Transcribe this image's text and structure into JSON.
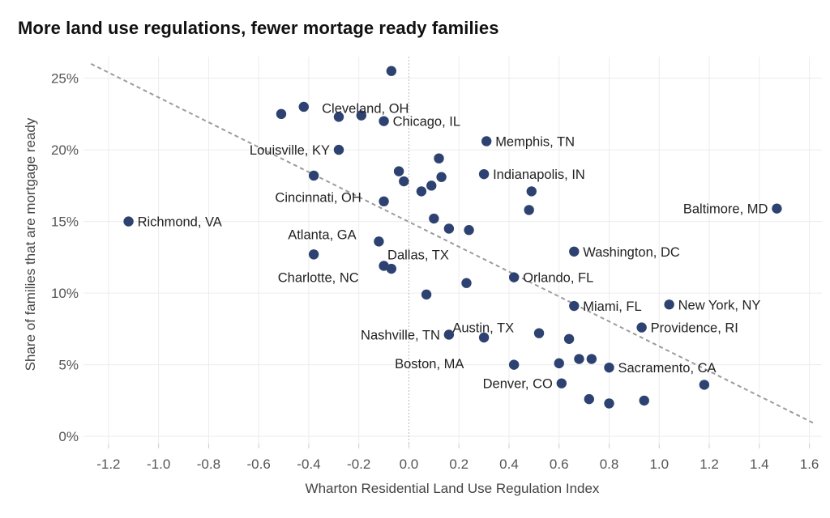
{
  "colors": {
    "point": "#2e4272",
    "grid": "#ececec",
    "trend": "#9b9b9b",
    "zero_line": "#bbbbbb"
  },
  "chart_data": {
    "type": "scatter",
    "title": "More land use regulations, fewer mortage ready families",
    "xlabel": "Wharton Residential Land Use Regulation Index",
    "ylabel": "Share of families that are mortgage ready",
    "xlim": [
      -1.3,
      1.65
    ],
    "ylim": [
      -0.5,
      26.5
    ],
    "x_ticks": [
      -1.2,
      -1.0,
      -0.8,
      -0.6,
      -0.4,
      -0.2,
      0.0,
      0.2,
      0.4,
      0.6,
      0.8,
      1.0,
      1.2,
      1.4,
      1.6
    ],
    "x_tick_labels": [
      "-1.2",
      "-1.0",
      "-0.8",
      "-0.6",
      "-0.4",
      "-0.2",
      "0.0",
      "0.2",
      "0.4",
      "0.6",
      "0.8",
      "1.0",
      "1.2",
      "1.4",
      "1.6"
    ],
    "y_ticks": [
      0,
      5,
      10,
      15,
      20,
      25
    ],
    "y_tick_labels": [
      "0%",
      "5%",
      "10%",
      "15%",
      "20%",
      "25%"
    ],
    "grid": true,
    "trendline": {
      "x": [
        -1.27,
        1.62
      ],
      "y": [
        26.0,
        0.9
      ]
    },
    "points": [
      {
        "x": -0.07,
        "y": 25.5,
        "label": ""
      },
      {
        "x": -0.42,
        "y": 23.0,
        "label": ""
      },
      {
        "x": -0.51,
        "y": 22.5,
        "label": ""
      },
      {
        "x": -0.28,
        "y": 22.3,
        "label": ""
      },
      {
        "x": -0.19,
        "y": 22.4,
        "label": ""
      },
      {
        "x": -0.1,
        "y": 22.0,
        "label": "Chicago, IL",
        "anchor": "right"
      },
      {
        "x": -0.28,
        "y": 20.0,
        "label": "Louisville, KY",
        "anchor": "left"
      },
      {
        "x": 0.31,
        "y": 20.6,
        "label": "Memphis, TN",
        "anchor": "right"
      },
      {
        "x": 0.12,
        "y": 19.4,
        "label": ""
      },
      {
        "x": -0.04,
        "y": 18.5,
        "label": ""
      },
      {
        "x": -0.38,
        "y": 18.2,
        "label": ""
      },
      {
        "x": -0.02,
        "y": 17.8,
        "label": ""
      },
      {
        "x": 0.13,
        "y": 18.1,
        "label": ""
      },
      {
        "x": 0.3,
        "y": 18.3,
        "label": "Indianapolis, IN",
        "anchor": "right"
      },
      {
        "x": 0.09,
        "y": 17.5,
        "label": ""
      },
      {
        "x": 0.05,
        "y": 17.1,
        "label": ""
      },
      {
        "x": 0.49,
        "y": 17.1,
        "label": ""
      },
      {
        "x": -0.1,
        "y": 16.4,
        "label": ""
      },
      {
        "x": 0.48,
        "y": 15.8,
        "label": ""
      },
      {
        "x": 1.47,
        "y": 15.9,
        "label": "Baltimore, MD",
        "anchor": "left"
      },
      {
        "x": -1.12,
        "y": 15.0,
        "label": "Richmond, VA",
        "anchor": "right"
      },
      {
        "x": 0.1,
        "y": 15.2,
        "label": ""
      },
      {
        "x": 0.16,
        "y": 14.5,
        "label": ""
      },
      {
        "x": 0.24,
        "y": 14.4,
        "label": ""
      },
      {
        "x": -0.12,
        "y": 13.6,
        "label": ""
      },
      {
        "x": -0.38,
        "y": 12.7,
        "label": ""
      },
      {
        "x": 0.66,
        "y": 12.9,
        "label": "Washington, DC",
        "anchor": "right"
      },
      {
        "x": -0.1,
        "y": 11.9,
        "label": ""
      },
      {
        "x": -0.07,
        "y": 11.7,
        "label": ""
      },
      {
        "x": 0.42,
        "y": 11.1,
        "label": "Orlando, FL",
        "anchor": "right"
      },
      {
        "x": 0.23,
        "y": 10.7,
        "label": ""
      },
      {
        "x": 0.07,
        "y": 9.9,
        "label": ""
      },
      {
        "x": 0.66,
        "y": 9.1,
        "label": "Miami, FL",
        "anchor": "right"
      },
      {
        "x": 1.04,
        "y": 9.2,
        "label": "New York, NY",
        "anchor": "right"
      },
      {
        "x": 0.93,
        "y": 7.6,
        "label": "Providence, RI",
        "anchor": "right"
      },
      {
        "x": 0.16,
        "y": 7.1,
        "label": "Nashville, TN",
        "anchor": "left"
      },
      {
        "x": 0.3,
        "y": 6.9,
        "label": ""
      },
      {
        "x": 0.52,
        "y": 7.2,
        "label": ""
      },
      {
        "x": 0.64,
        "y": 6.8,
        "label": ""
      },
      {
        "x": 0.68,
        "y": 5.4,
        "label": ""
      },
      {
        "x": 0.73,
        "y": 5.4,
        "label": ""
      },
      {
        "x": 0.42,
        "y": 5.0,
        "label": ""
      },
      {
        "x": 0.6,
        "y": 5.1,
        "label": ""
      },
      {
        "x": 0.8,
        "y": 4.8,
        "label": "Sacramento, CA",
        "anchor": "right"
      },
      {
        "x": 0.61,
        "y": 3.7,
        "label": "Denver, CO",
        "anchor": "left"
      },
      {
        "x": 1.18,
        "y": 3.6,
        "label": ""
      },
      {
        "x": 0.72,
        "y": 2.6,
        "label": ""
      },
      {
        "x": 0.8,
        "y": 2.3,
        "label": ""
      },
      {
        "x": 0.94,
        "y": 2.5,
        "label": ""
      }
    ],
    "annotations": [
      {
        "text": "Cleveland, OH",
        "x": 0.0,
        "y": 22.9
      },
      {
        "text": "Cincinnati, OH",
        "x": -0.19,
        "y": 16.7
      },
      {
        "text": "Atlanta, GA",
        "x": -0.21,
        "y": 14.1
      },
      {
        "text": "Dallas, TX",
        "x": 0.16,
        "y": 12.7
      },
      {
        "text": "Charlotte, NC",
        "x": -0.2,
        "y": 11.1
      },
      {
        "text": "Austin, TX",
        "x": 0.42,
        "y": 7.6
      },
      {
        "text": "Boston, MA",
        "x": 0.22,
        "y": 5.1
      }
    ]
  }
}
